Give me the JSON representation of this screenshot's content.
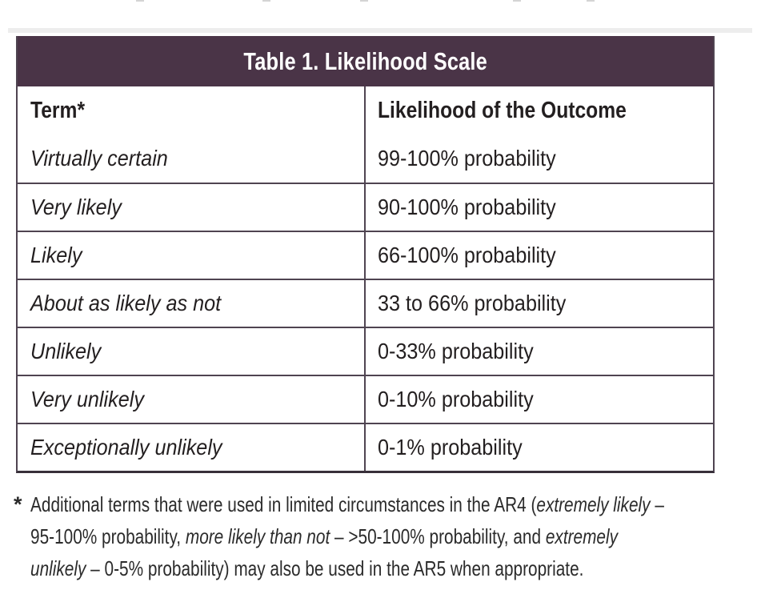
{
  "colors": {
    "plum": "#4a3447",
    "line": "#4f4451",
    "line-heavy": "#38303a",
    "text": "#231f20",
    "fn-text": "#2b2b2b"
  },
  "table": {
    "title": "Table 1. Likelihood Scale",
    "columns": {
      "term": "Term*",
      "likelihood": "Likelihood of the Outcome"
    },
    "rows": [
      {
        "term": "Virtually certain",
        "likelihood": "99-100% probability"
      },
      {
        "term": "Very likely",
        "likelihood": "90-100% probability"
      },
      {
        "term": "Likely",
        "likelihood": "66-100% probability"
      },
      {
        "term": "About as likely as not",
        "likelihood": "33 to 66% probability"
      },
      {
        "term": "Unlikely",
        "likelihood": "0-33% probability"
      },
      {
        "term": "Very unlikely",
        "likelihood": "0-10% probability"
      },
      {
        "term": "Exceptionally unlikely",
        "likelihood": "0-1% probability"
      }
    ]
  },
  "footnote": {
    "marker": "*",
    "lines": [
      [
        {
          "t": "Additional terms that were used in limited circumstances in the AR4 ("
        },
        {
          "t": "extremely likely",
          "i": true
        },
        {
          "t": " –"
        }
      ],
      [
        {
          "t": "95-100% probability, "
        },
        {
          "t": "more likely than not",
          "i": true
        },
        {
          "t": " – >50-100% probability, and "
        },
        {
          "t": "extremely",
          "i": true
        }
      ],
      [
        {
          "t": "unlikely",
          "i": true
        },
        {
          "t": " – 0-5% probability) may also be used in the AR5 when appropriate."
        }
      ]
    ]
  }
}
